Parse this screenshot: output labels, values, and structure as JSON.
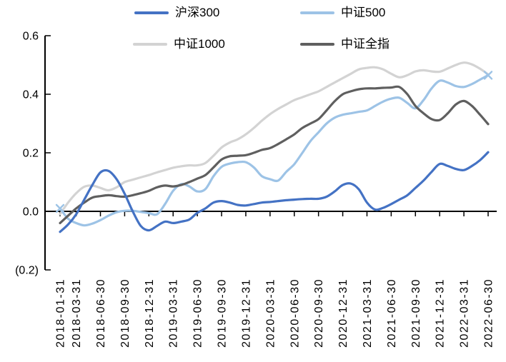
{
  "chart_data": {
    "type": "line",
    "title": "",
    "background": "#FFFFFF",
    "axis_color": "#000000",
    "legend_position": "top",
    "grid": false,
    "ylim": [
      -0.2,
      0.6
    ],
    "y_ticks": [
      {
        "label": "0.6",
        "value": 0.6
      },
      {
        "label": "0.4",
        "value": 0.4
      },
      {
        "label": "0.2",
        "value": 0.2
      },
      {
        "label": "0.0",
        "value": 0.0
      },
      {
        "label": "(0.2)",
        "value": -0.2
      }
    ],
    "x_labels": [
      "2018-01-31",
      "2018-03-31",
      "2018-06-30",
      "2018-09-30",
      "2018-12-31",
      "2019-03-31",
      "2019-06-30",
      "2019-09-30",
      "2019-12-31",
      "2020-03-31",
      "2020-06-30",
      "2020-09-30",
      "2020-12-31",
      "2021-03-31",
      "2021-06-30",
      "2021-09-30",
      "2021-12-31",
      "2022-03-31",
      "2022-06-30"
    ],
    "x_label_month_index": [
      0,
      2,
      5,
      8,
      11,
      14,
      17,
      20,
      23,
      26,
      29,
      32,
      35,
      38,
      41,
      44,
      47,
      50,
      53
    ],
    "n_points": 54,
    "series": [
      {
        "name": "沪深300",
        "color": "#4472C4",
        "marker": "none",
        "values": [
          -0.07,
          -0.045,
          -0.01,
          0.04,
          0.09,
          0.133,
          0.138,
          0.11,
          0.06,
          0.0,
          -0.05,
          -0.065,
          -0.05,
          -0.035,
          -0.04,
          -0.035,
          -0.028,
          -0.005,
          0.01,
          0.03,
          0.035,
          0.03,
          0.022,
          0.02,
          0.025,
          0.03,
          0.032,
          0.035,
          0.038,
          0.04,
          0.042,
          0.043,
          0.043,
          0.05,
          0.068,
          0.09,
          0.095,
          0.075,
          0.03,
          0.006,
          0.012,
          0.025,
          0.04,
          0.055,
          0.08,
          0.105,
          0.135,
          0.162,
          0.155,
          0.145,
          0.141,
          0.155,
          0.175,
          0.202
        ]
      },
      {
        "name": "中证500",
        "color": "#9DC3E6",
        "marker": "x-endpoints",
        "values": [
          0.01,
          -0.025,
          -0.04,
          -0.048,
          -0.042,
          -0.03,
          -0.015,
          -0.003,
          0.002,
          0.002,
          -0.002,
          -0.006,
          -0.01,
          0.025,
          0.07,
          0.093,
          0.085,
          0.068,
          0.076,
          0.12,
          0.152,
          0.163,
          0.168,
          0.168,
          0.15,
          0.12,
          0.11,
          0.105,
          0.135,
          0.161,
          0.2,
          0.24,
          0.27,
          0.3,
          0.32,
          0.33,
          0.335,
          0.34,
          0.345,
          0.36,
          0.375,
          0.385,
          0.388,
          0.37,
          0.352,
          0.38,
          0.42,
          0.446,
          0.44,
          0.428,
          0.425,
          0.435,
          0.45,
          0.465
        ]
      },
      {
        "name": "中证1000",
        "color": "#D3D3D3",
        "marker": "none",
        "values": [
          -0.01,
          0.03,
          0.062,
          0.084,
          0.088,
          0.08,
          0.072,
          0.082,
          0.1,
          0.108,
          0.116,
          0.124,
          0.133,
          0.141,
          0.149,
          0.154,
          0.157,
          0.157,
          0.165,
          0.19,
          0.218,
          0.235,
          0.246,
          0.263,
          0.285,
          0.31,
          0.332,
          0.35,
          0.365,
          0.38,
          0.39,
          0.4,
          0.41,
          0.425,
          0.44,
          0.455,
          0.47,
          0.485,
          0.49,
          0.492,
          0.485,
          0.47,
          0.458,
          0.465,
          0.478,
          0.482,
          0.478,
          0.477,
          0.488,
          0.5,
          0.508,
          0.502,
          0.487,
          0.468
        ]
      },
      {
        "name": "中证全指",
        "color": "#5F5F5F",
        "marker": "none",
        "values": [
          -0.04,
          -0.015,
          0.01,
          0.03,
          0.047,
          0.052,
          0.055,
          0.052,
          0.05,
          0.055,
          0.062,
          0.07,
          0.082,
          0.088,
          0.085,
          0.09,
          0.1,
          0.112,
          0.124,
          0.15,
          0.177,
          0.188,
          0.19,
          0.192,
          0.2,
          0.21,
          0.216,
          0.23,
          0.246,
          0.263,
          0.285,
          0.3,
          0.315,
          0.345,
          0.376,
          0.4,
          0.41,
          0.417,
          0.42,
          0.42,
          0.422,
          0.423,
          0.425,
          0.4,
          0.36,
          0.335,
          0.315,
          0.312,
          0.335,
          0.365,
          0.377,
          0.36,
          0.33,
          0.298
        ]
      }
    ]
  }
}
